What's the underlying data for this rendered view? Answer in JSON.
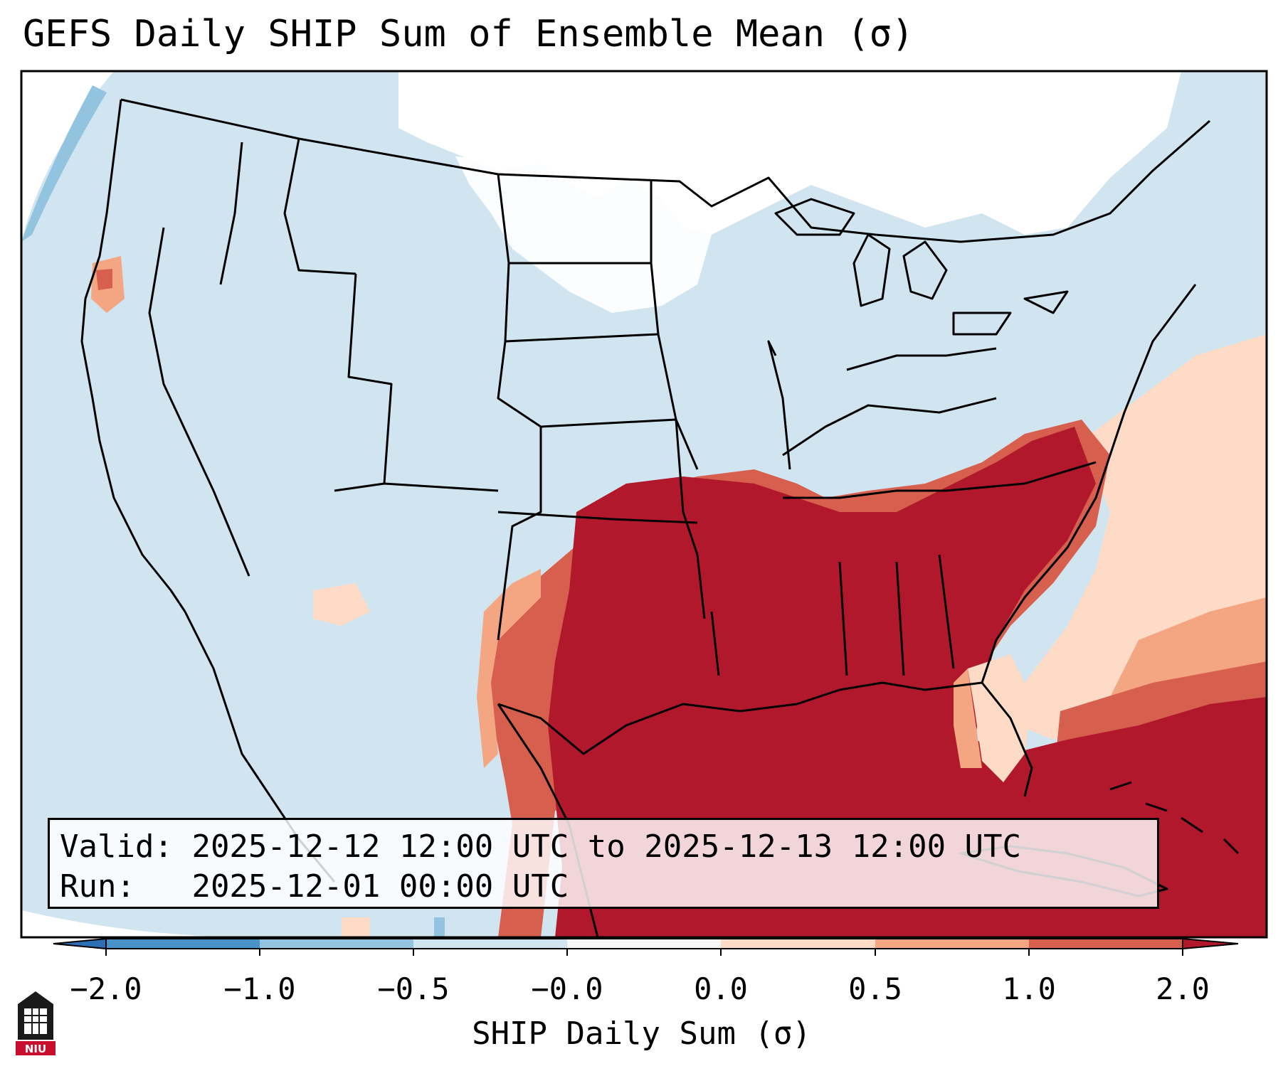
{
  "title": "GEFS Daily SHIP Sum of Ensemble Mean (σ)",
  "info": {
    "valid_label": "Valid:",
    "valid_value": "2025-12-12 12:00 UTC to 2025-12-13 12:00 UTC",
    "run_label": "Run:",
    "run_value": "2025-12-01 00:00 UTC"
  },
  "colorbar": {
    "title": "SHIP Daily Sum (σ)",
    "tick_labels": [
      "−2.0",
      "−1.0",
      "−0.5",
      "−0.0",
      "0.0",
      "0.5",
      "1.0",
      "2.0"
    ],
    "colors": [
      "#2c6fb5",
      "#4a93c8",
      "#93c4df",
      "#d1e5f0",
      "#f7f7f7",
      "#fddbc7",
      "#f4a582",
      "#d6604d",
      "#b2182b"
    ]
  },
  "colors": {
    "ocean_land_neutral": "#d1e5f0",
    "strong_positive": "#b2182b",
    "positive": "#d6604d",
    "weak_positive": "#fddbc7",
    "near_zero": "#ffffff"
  },
  "logo": {
    "text": "NIU"
  }
}
